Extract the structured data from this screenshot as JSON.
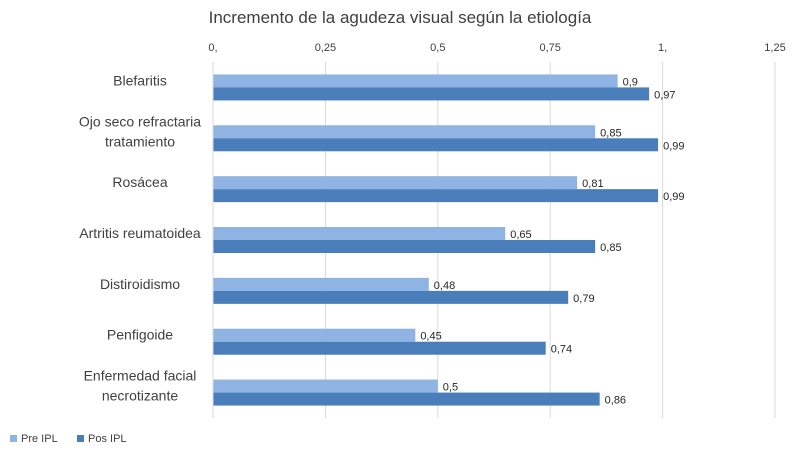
{
  "chart_data": {
    "type": "bar",
    "orientation": "horizontal",
    "title": "Incremento de la agudeza visual según la etiología",
    "categories": [
      [
        "Blefaritis"
      ],
      [
        "Ojo seco refractaria",
        "tratamiento"
      ],
      [
        "Rosácea"
      ],
      [
        "Artritis reumatoidea"
      ],
      [
        "Distiroidismo"
      ],
      [
        "Penfigoide"
      ],
      [
        "Enfermedad facial",
        "necrotizante"
      ]
    ],
    "series": [
      {
        "name": "Pre IPL",
        "color": "#8FB4E3",
        "values": [
          0.9,
          0.85,
          0.81,
          0.65,
          0.48,
          0.45,
          0.5
        ],
        "labels": [
          "0,9",
          "0,85",
          "0,81",
          "0,65",
          "0,48",
          "0,45",
          "0,5"
        ]
      },
      {
        "name": "Pos IPL",
        "color": "#4A7EBB",
        "values": [
          0.97,
          0.99,
          0.99,
          0.85,
          0.79,
          0.74,
          0.86
        ],
        "labels": [
          "0,97",
          "0,99",
          "0,99",
          "0,85",
          "0,79",
          "0,74",
          "0,86"
        ]
      }
    ],
    "x_axis": {
      "ticks": [
        0,
        0.25,
        0.5,
        0.75,
        1,
        1.25
      ],
      "tick_labels": [
        "0,",
        "0,25",
        "0,5",
        "0,75",
        "1,",
        "1,25"
      ],
      "position": "top",
      "range": [
        0,
        1.25
      ]
    },
    "grid": true,
    "legend_position": "bottom-left"
  }
}
